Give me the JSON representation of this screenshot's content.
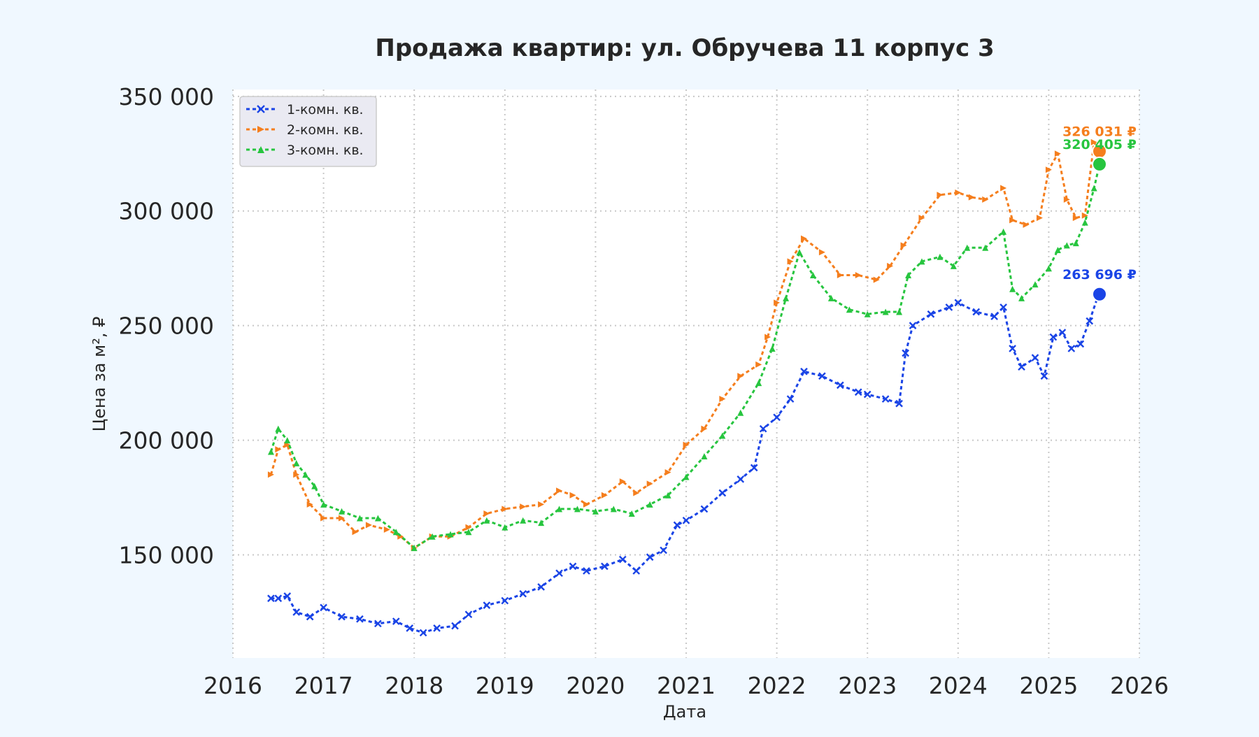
{
  "chart_data": {
    "type": "line",
    "title": "Продажа квартир: ул. Обручева 11 корпус 3",
    "xlabel": "Дата",
    "ylabel": "Цена за м², ₽",
    "xlim": [
      2016,
      2026
    ],
    "ylim": [
      105000,
      353000
    ],
    "x_ticks": [
      2016,
      2017,
      2018,
      2019,
      2020,
      2021,
      2022,
      2023,
      2024,
      2025,
      2026
    ],
    "x_tick_labels": [
      "2016",
      "2017",
      "2018",
      "2019",
      "2020",
      "2021",
      "2022",
      "2023",
      "2024",
      "2025",
      "2026"
    ],
    "y_ticks": [
      150000,
      200000,
      250000,
      300000,
      350000
    ],
    "y_tick_labels": [
      "150 000",
      "200 000",
      "250 000",
      "300 000",
      "350 000"
    ],
    "grid": true,
    "legend_position": "top-left",
    "series": [
      {
        "name": "1-комн. кв.",
        "color": "#1a44e6",
        "marker": "x",
        "x": [
          2016.42,
          2016.5,
          2016.6,
          2016.7,
          2016.85,
          2017.0,
          2017.2,
          2017.4,
          2017.6,
          2017.8,
          2017.95,
          2018.1,
          2018.25,
          2018.45,
          2018.6,
          2018.8,
          2019.0,
          2019.2,
          2019.4,
          2019.6,
          2019.75,
          2019.9,
          2020.1,
          2020.3,
          2020.45,
          2020.6,
          2020.75,
          2020.9,
          2021.0,
          2021.2,
          2021.4,
          2021.6,
          2021.75,
          2021.85,
          2022.0,
          2022.15,
          2022.3,
          2022.5,
          2022.7,
          2022.9,
          2023.0,
          2023.2,
          2023.35,
          2023.42,
          2023.5,
          2023.7,
          2023.9,
          2024.0,
          2024.2,
          2024.4,
          2024.5,
          2024.6,
          2024.7,
          2024.85,
          2024.95,
          2025.05,
          2025.15,
          2025.25,
          2025.35,
          2025.45,
          2025.55
        ],
        "y": [
          131000,
          131000,
          132000,
          125000,
          123000,
          127000,
          123000,
          122000,
          120000,
          121000,
          118000,
          116000,
          118000,
          119000,
          124000,
          128000,
          130000,
          133000,
          136000,
          142000,
          145000,
          143000,
          145000,
          148000,
          143000,
          149000,
          152000,
          163000,
          165000,
          170000,
          177000,
          183000,
          188000,
          205000,
          210000,
          218000,
          230000,
          228000,
          224000,
          221000,
          220000,
          218000,
          216000,
          238000,
          250000,
          255000,
          258000,
          260000,
          256000,
          254000,
          258000,
          240000,
          232000,
          236000,
          228000,
          245000,
          247000,
          240000,
          242000,
          252000,
          263696
        ]
      },
      {
        "name": "2-комн. кв.",
        "color": "#f57e1d",
        "marker": ">",
        "x": [
          2016.42,
          2016.5,
          2016.6,
          2016.7,
          2016.85,
          2017.0,
          2017.2,
          2017.35,
          2017.5,
          2017.7,
          2017.85,
          2018.0,
          2018.2,
          2018.4,
          2018.6,
          2018.8,
          2019.0,
          2019.2,
          2019.4,
          2019.6,
          2019.75,
          2019.9,
          2020.1,
          2020.3,
          2020.45,
          2020.6,
          2020.8,
          2021.0,
          2021.2,
          2021.4,
          2021.6,
          2021.8,
          2021.9,
          2022.0,
          2022.15,
          2022.3,
          2022.5,
          2022.7,
          2022.9,
          2023.1,
          2023.25,
          2023.4,
          2023.6,
          2023.8,
          2024.0,
          2024.15,
          2024.3,
          2024.5,
          2024.6,
          2024.75,
          2024.9,
          2025.0,
          2025.1,
          2025.2,
          2025.3,
          2025.4,
          2025.5,
          2025.56
        ],
        "y": [
          185000,
          196000,
          198000,
          185000,
          172000,
          166000,
          166000,
          160000,
          163000,
          161000,
          158000,
          153000,
          158000,
          158000,
          162000,
          168000,
          170000,
          171000,
          172000,
          178000,
          176000,
          172000,
          176000,
          182000,
          177000,
          181000,
          186000,
          198000,
          205000,
          218000,
          228000,
          233000,
          245000,
          260000,
          278000,
          288000,
          282000,
          272000,
          272000,
          270000,
          276000,
          285000,
          297000,
          307000,
          308000,
          306000,
          305000,
          310000,
          296000,
          294000,
          297000,
          318000,
          325000,
          305000,
          297000,
          298000,
          330000,
          326031
        ]
      },
      {
        "name": "3-комн. кв.",
        "color": "#27c53f",
        "marker": "^",
        "x": [
          2016.42,
          2016.5,
          2016.6,
          2016.7,
          2016.8,
          2016.9,
          2017.0,
          2017.2,
          2017.4,
          2017.6,
          2017.8,
          2018.0,
          2018.2,
          2018.4,
          2018.6,
          2018.8,
          2019.0,
          2019.2,
          2019.4,
          2019.6,
          2019.8,
          2020.0,
          2020.2,
          2020.4,
          2020.6,
          2020.8,
          2021.0,
          2021.2,
          2021.4,
          2021.6,
          2021.8,
          2021.95,
          2022.1,
          2022.25,
          2022.4,
          2022.6,
          2022.8,
          2023.0,
          2023.2,
          2023.35,
          2023.45,
          2023.6,
          2023.8,
          2023.95,
          2024.1,
          2024.3,
          2024.5,
          2024.6,
          2024.7,
          2024.85,
          2025.0,
          2025.1,
          2025.2,
          2025.3,
          2025.4,
          2025.5,
          2025.56
        ],
        "y": [
          195000,
          205000,
          200000,
          190000,
          185000,
          180000,
          172000,
          169000,
          166000,
          166000,
          160000,
          153000,
          158000,
          159000,
          160000,
          165000,
          162000,
          165000,
          164000,
          170000,
          170000,
          169000,
          170000,
          168000,
          172000,
          176000,
          184000,
          193000,
          202000,
          212000,
          225000,
          240000,
          262000,
          282000,
          272000,
          262000,
          257000,
          255000,
          256000,
          256000,
          272000,
          278000,
          280000,
          276000,
          284000,
          284000,
          291000,
          266000,
          262000,
          268000,
          275000,
          283000,
          285000,
          286000,
          295000,
          310000,
          320405
        ]
      }
    ],
    "annotations": [
      {
        "series": "1-комн. кв.",
        "x": 2025.56,
        "y": 263696,
        "text": "263 696 ₽"
      },
      {
        "series": "2-комн. кв.",
        "x": 2025.56,
        "y": 326031,
        "text": "326 031 ₽"
      },
      {
        "series": "3-комн. кв.",
        "x": 2025.56,
        "y": 320405,
        "text": "320 405 ₽"
      }
    ]
  }
}
